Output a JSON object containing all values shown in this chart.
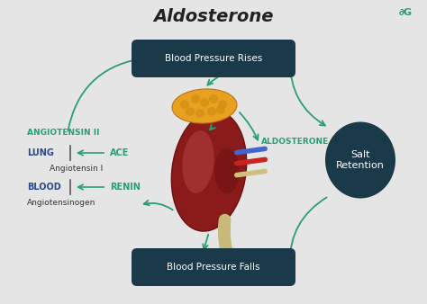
{
  "title": "Aldosterone",
  "title_fontsize": 14,
  "title_color": "#222222",
  "bg_color": "#e5e5e5",
  "arrow_color": "#2a9d74",
  "box_bg": "#1a3a4a",
  "box_text_color": "#ffffff",
  "box_top_text": "Blood Pressure Rises",
  "box_bottom_text": "Blood Pressure Falls",
  "salt_retention_text": "Salt\nRetention",
  "salt_bg": "#1a3a4a",
  "angiotensin2_text": "ANGIOTENSIN II",
  "angiotensin2_color": "#2a9d74",
  "lung_text": "LUNG",
  "lung_color": "#2a4a8a",
  "ace_text": "ACE",
  "ace_color": "#2a9d74",
  "angiotensin1_text": "Angiotensin I",
  "angiotensin1_color": "#333333",
  "blood_text": "BLOOD",
  "blood_color": "#2a4a8a",
  "renin_text": "RENIN",
  "renin_color": "#2a9d74",
  "angiotensinogen_text": "Angiotensinogen",
  "angiotensinogen_color": "#333333",
  "aldosterone_text": "ALDOSTERONE",
  "aldosterone_color": "#2a9d74",
  "logo_color": "#2a9d74",
  "kidney_color": "#8b1a1a",
  "kidney_highlight": "#a03030",
  "adrenal_color": "#e8a020",
  "adrenal_edge": "#c07010",
  "vessel_tan": "#c8b87a",
  "vessel_blue": "#4466cc",
  "vessel_red": "#cc2222"
}
